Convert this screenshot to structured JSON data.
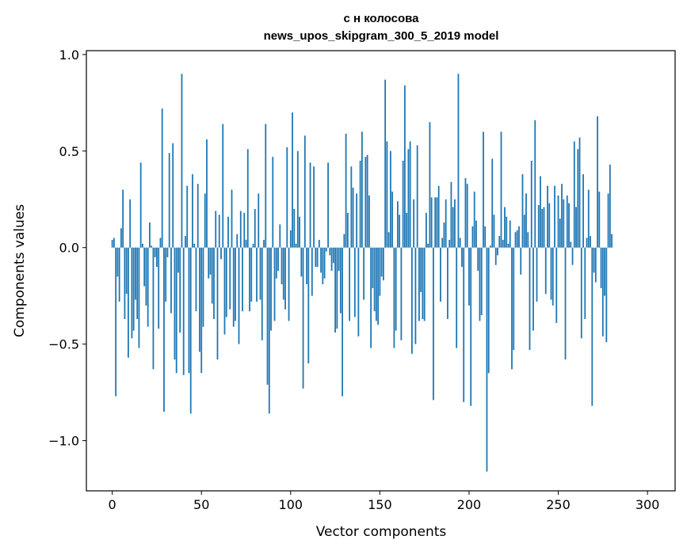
{
  "chart_data": {
    "type": "bar",
    "title_line1": "с н колосова",
    "title_line2": "news_upos_skipgram_300_5_2019 model",
    "xlabel": "Vector components",
    "ylabel": "Components values",
    "xlim": [
      -14.5,
      315.5
    ],
    "ylim": [
      -1.26,
      1.02
    ],
    "xticks": [
      0,
      50,
      100,
      150,
      200,
      250,
      300
    ],
    "xtick_labels": [
      "0",
      "50",
      "100",
      "150",
      "200",
      "250",
      "300"
    ],
    "yticks": [
      -1.0,
      -0.5,
      0.0,
      0.5,
      1.0
    ],
    "ytick_labels": [
      "−1.0",
      "−0.5",
      "0.0",
      "0.5",
      "1.0"
    ],
    "bar_color": "#1f77b4",
    "values": [
      0.04,
      0.05,
      -0.77,
      -0.15,
      -0.28,
      0.1,
      0.3,
      -0.37,
      -0.24,
      -0.57,
      0.25,
      -0.47,
      -0.43,
      -0.27,
      -0.37,
      -0.52,
      0.44,
      0.02,
      -0.2,
      -0.3,
      -0.41,
      0.13,
      0.01,
      -0.63,
      -0.05,
      -0.1,
      -0.42,
      0.05,
      0.72,
      -0.85,
      -0.28,
      -0.05,
      0.49,
      -0.34,
      0.54,
      -0.58,
      -0.65,
      -0.13,
      -0.44,
      0.9,
      -0.66,
      0.06,
      0.32,
      -0.65,
      -0.86,
      0.38,
      0.02,
      -0.33,
      0.33,
      -0.54,
      -0.65,
      -0.41,
      0.28,
      0.56,
      -0.16,
      -0.14,
      -0.29,
      -0.37,
      0.19,
      -0.58,
      0.17,
      -0.06,
      0.64,
      -0.45,
      -0.36,
      0.16,
      -0.32,
      0.3,
      -0.41,
      -0.38,
      0.07,
      -0.5,
      0.19,
      -0.33,
      0.18,
      0.04,
      0.51,
      -0.33,
      -0.28,
      0.02,
      0.2,
      -0.28,
      0.28,
      -0.27,
      -0.48,
      0.04,
      0.64,
      -0.71,
      -0.86,
      -0.43,
      0.47,
      -0.38,
      -0.16,
      -0.12,
      0.12,
      -0.19,
      -0.27,
      -0.32,
      0.52,
      -0.38,
      0.09,
      0.7,
      0.2,
      0.02,
      0.5,
      0.16,
      -0.15,
      -0.73,
      0.58,
      -0.19,
      -0.6,
      0.44,
      -0.25,
      0.42,
      -0.1,
      -0.1,
      0.04,
      -0.13,
      -0.19,
      -0.16,
      -0.02,
      0.44,
      -0.04,
      -0.12,
      -0.08,
      -0.44,
      -0.42,
      -0.12,
      -0.34,
      -0.77,
      0.07,
      0.59,
      0.18,
      -0.38,
      0.42,
      0.31,
      -0.36,
      0.28,
      -0.46,
      0.45,
      0.6,
      -0.27,
      0.47,
      0.48,
      0.27,
      -0.52,
      -0.21,
      -0.33,
      -0.38,
      -0.4,
      -0.25,
      -0.15,
      -0.17,
      0.87,
      0.55,
      0.08,
      0.5,
      0.29,
      -0.52,
      -0.43,
      0.24,
      0.17,
      -0.48,
      0.45,
      0.84,
      0.18,
      0.51,
      0.55,
      -0.55,
      0.25,
      -0.5,
      0.53,
      -0.38,
      -0.23,
      -0.37,
      -0.38,
      0.18,
      0.02,
      0.65,
      0.26,
      -0.79,
      0.26,
      0.26,
      0.32,
      -0.28,
      0.05,
      0.13,
      0.25,
      -0.37,
      0.04,
      0.34,
      0.21,
      0.25,
      -0.52,
      0.9,
      0.05,
      -0.1,
      -0.8,
      0.36,
      0.33,
      -0.3,
      -0.82,
      0.11,
      0.29,
      0.14,
      -0.12,
      -0.38,
      -0.35,
      0.6,
      0.11,
      -1.16,
      -0.65,
      0.01,
      0.46,
      0.17,
      -0.09,
      -0.04,
      0.06,
      0.6,
      0.04,
      0.21,
      0.16,
      0.02,
      0.14,
      -0.63,
      -0.53,
      0.08,
      0.09,
      0.11,
      -0.14,
      0.38,
      0.17,
      0.28,
      0.08,
      -0.53,
      0.45,
      -0.43,
      0.66,
      -0.28,
      0.22,
      0.37,
      0.2,
      0.21,
      -0.24,
      0.32,
      0.23,
      -0.27,
      -0.3,
      0.32,
      -0.39,
      0.27,
      0.15,
      0.33,
      0.25,
      -0.58,
      0.27,
      0.23,
      0.03,
      -0.09,
      0.55,
      0.21,
      0.51,
      0.57,
      -0.47,
      0.38,
      -0.37,
      0.05,
      0.3,
      0.06,
      -0.82,
      -0.13,
      -0.18,
      0.68,
      0.29,
      -0.21,
      -0.46,
      -0.25,
      -0.49,
      0.28,
      0.43,
      0.07
    ]
  }
}
